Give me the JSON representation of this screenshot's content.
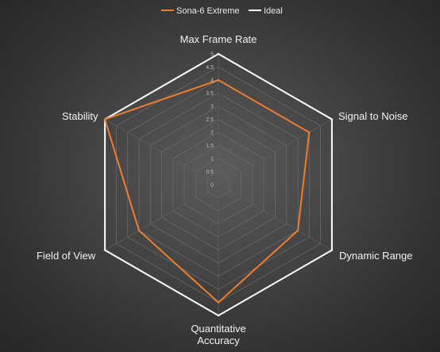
{
  "chart_data": {
    "type": "radar",
    "title": "",
    "categories": [
      "Max Frame Rate",
      "Signal to Noise",
      "Dynamic Range",
      "Quantitative Accuracy",
      "Field of View",
      "Stability"
    ],
    "category_label_lines": [
      [
        "Max Frame Rate"
      ],
      [
        "Signal to Noise"
      ],
      [
        "Dynamic Range"
      ],
      [
        "Quantitative",
        "Accuracy"
      ],
      [
        "Field of View"
      ],
      [
        "Stability"
      ]
    ],
    "series": [
      {
        "name": "Sona-6 Extreme",
        "values": [
          4,
          4,
          3.5,
          4.5,
          3.5,
          5
        ],
        "color": "#ED7D31"
      },
      {
        "name": "Ideal",
        "values": [
          5,
          5,
          5,
          5,
          5,
          5
        ],
        "color": "#FFFFFF"
      }
    ],
    "rlim": [
      0,
      5
    ],
    "ticks": [
      "0",
      "0.5",
      "1",
      "1.5",
      "2",
      "2.5",
      "3",
      "3.5",
      "4",
      "4.5",
      "5"
    ],
    "gridlines": true,
    "legend_position": "top"
  },
  "colors": {
    "grid": "#6a6a6a",
    "axis": "#5e5e5e"
  }
}
